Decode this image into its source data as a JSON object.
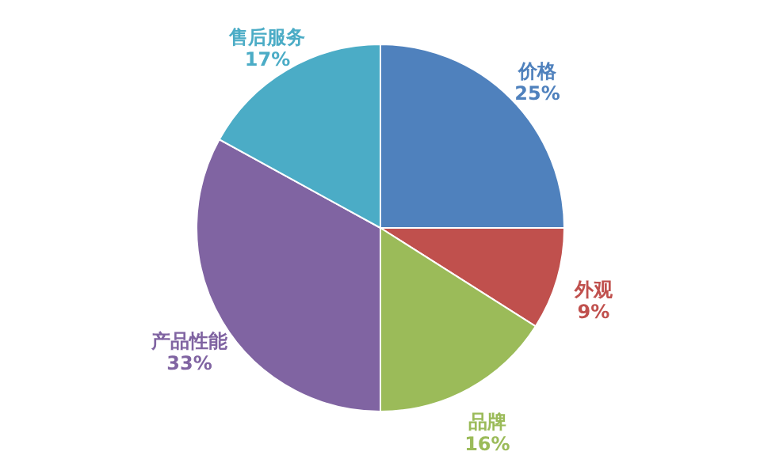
{
  "chart_data": {
    "type": "pie",
    "categories": [
      "价格",
      "外观",
      "品牌",
      "产品性能",
      "售后服务"
    ],
    "values": [
      25,
      9,
      16,
      33,
      17
    ],
    "colors": [
      "#4f81bd",
      "#c0504d",
      "#9bbb59",
      "#8064a2",
      "#4bacc6"
    ],
    "value_labels": [
      "25%",
      "9%",
      "16%",
      "33%",
      "17%"
    ],
    "legend": false
  }
}
